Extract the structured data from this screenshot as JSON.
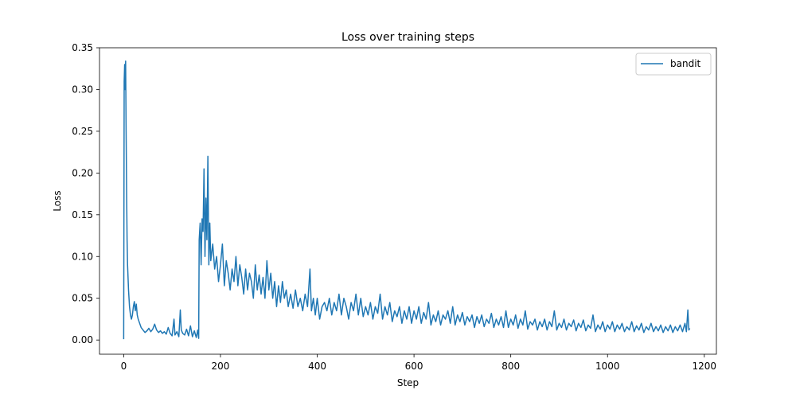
{
  "chart_data": {
    "type": "line",
    "title": "Loss over training steps",
    "xlabel": "Step",
    "ylabel": "Loss",
    "xlim": [
      -50,
      1225
    ],
    "ylim": [
      -0.017,
      0.35
    ],
    "xticks": [
      0,
      200,
      400,
      600,
      800,
      1000,
      1200
    ],
    "yticks": [
      0.0,
      0.05,
      0.1,
      0.15,
      0.2,
      0.25,
      0.3,
      0.35
    ],
    "xtick_labels": [
      "0",
      "200",
      "400",
      "600",
      "800",
      "1000",
      "1200"
    ],
    "ytick_labels": [
      "0.00",
      "0.05",
      "0.10",
      "0.15",
      "0.20",
      "0.25",
      "0.30",
      "0.35"
    ],
    "grid": false,
    "legend": {
      "position": "top-right",
      "entries": [
        "bandit"
      ]
    },
    "series": [
      {
        "name": "bandit",
        "color": "#1f77b4",
        "points": [
          [
            0,
            0.001
          ],
          [
            1,
            0.31
          ],
          [
            2,
            0.33
          ],
          [
            3,
            0.3
          ],
          [
            4,
            0.334
          ],
          [
            5,
            0.25
          ],
          [
            6,
            0.18
          ],
          [
            7,
            0.12
          ],
          [
            8,
            0.09
          ],
          [
            10,
            0.06
          ],
          [
            12,
            0.04
          ],
          [
            14,
            0.03
          ],
          [
            16,
            0.025
          ],
          [
            18,
            0.03
          ],
          [
            20,
            0.04
          ],
          [
            22,
            0.046
          ],
          [
            24,
            0.035
          ],
          [
            26,
            0.043
          ],
          [
            28,
            0.03
          ],
          [
            30,
            0.025
          ],
          [
            33,
            0.02
          ],
          [
            36,
            0.015
          ],
          [
            40,
            0.012
          ],
          [
            44,
            0.009
          ],
          [
            48,
            0.011
          ],
          [
            52,
            0.014
          ],
          [
            56,
            0.01
          ],
          [
            60,
            0.013
          ],
          [
            64,
            0.019
          ],
          [
            68,
            0.012
          ],
          [
            72,
            0.009
          ],
          [
            76,
            0.011
          ],
          [
            80,
            0.008
          ],
          [
            84,
            0.01
          ],
          [
            88,
            0.007
          ],
          [
            92,
            0.015
          ],
          [
            96,
            0.008
          ],
          [
            100,
            0.005
          ],
          [
            104,
            0.025
          ],
          [
            106,
            0.006
          ],
          [
            110,
            0.01
          ],
          [
            114,
            0.004
          ],
          [
            117,
            0.036
          ],
          [
            119,
            0.012
          ],
          [
            122,
            0.008
          ],
          [
            126,
            0.006
          ],
          [
            130,
            0.013
          ],
          [
            134,
            0.005
          ],
          [
            138,
            0.017
          ],
          [
            142,
            0.004
          ],
          [
            146,
            0.011
          ],
          [
            150,
            0.003
          ],
          [
            153,
            0.012
          ],
          [
            155,
            0.002
          ],
          [
            156,
            0.12
          ],
          [
            158,
            0.14
          ],
          [
            160,
            0.09
          ],
          [
            162,
            0.145
          ],
          [
            164,
            0.13
          ],
          [
            166,
            0.205
          ],
          [
            168,
            0.1
          ],
          [
            170,
            0.17
          ],
          [
            172,
            0.12
          ],
          [
            174,
            0.22
          ],
          [
            176,
            0.09
          ],
          [
            178,
            0.14
          ],
          [
            180,
            0.095
          ],
          [
            184,
            0.115
          ],
          [
            188,
            0.085
          ],
          [
            192,
            0.1
          ],
          [
            196,
            0.07
          ],
          [
            200,
            0.09
          ],
          [
            204,
            0.115
          ],
          [
            208,
            0.065
          ],
          [
            212,
            0.095
          ],
          [
            216,
            0.08
          ],
          [
            220,
            0.06
          ],
          [
            224,
            0.085
          ],
          [
            228,
            0.07
          ],
          [
            232,
            0.1
          ],
          [
            236,
            0.065
          ],
          [
            240,
            0.09
          ],
          [
            244,
            0.075
          ],
          [
            248,
            0.055
          ],
          [
            252,
            0.085
          ],
          [
            256,
            0.06
          ],
          [
            260,
            0.08
          ],
          [
            264,
            0.07
          ],
          [
            268,
            0.05
          ],
          [
            272,
            0.09
          ],
          [
            276,
            0.06
          ],
          [
            280,
            0.078
          ],
          [
            284,
            0.055
          ],
          [
            288,
            0.075
          ],
          [
            292,
            0.05
          ],
          [
            296,
            0.095
          ],
          [
            300,
            0.06
          ],
          [
            304,
            0.08
          ],
          [
            308,
            0.05
          ],
          [
            312,
            0.07
          ],
          [
            316,
            0.04
          ],
          [
            320,
            0.065
          ],
          [
            324,
            0.045
          ],
          [
            328,
            0.07
          ],
          [
            332,
            0.05
          ],
          [
            336,
            0.06
          ],
          [
            340,
            0.04
          ],
          [
            345,
            0.055
          ],
          [
            350,
            0.038
          ],
          [
            355,
            0.06
          ],
          [
            360,
            0.04
          ],
          [
            365,
            0.05
          ],
          [
            370,
            0.035
          ],
          [
            375,
            0.055
          ],
          [
            380,
            0.04
          ],
          [
            385,
            0.085
          ],
          [
            388,
            0.035
          ],
          [
            392,
            0.05
          ],
          [
            396,
            0.03
          ],
          [
            400,
            0.05
          ],
          [
            405,
            0.025
          ],
          [
            410,
            0.04
          ],
          [
            415,
            0.045
          ],
          [
            420,
            0.035
          ],
          [
            425,
            0.05
          ],
          [
            430,
            0.03
          ],
          [
            435,
            0.045
          ],
          [
            440,
            0.035
          ],
          [
            445,
            0.055
          ],
          [
            450,
            0.03
          ],
          [
            455,
            0.05
          ],
          [
            460,
            0.04
          ],
          [
            465,
            0.025
          ],
          [
            470,
            0.045
          ],
          [
            475,
            0.035
          ],
          [
            480,
            0.055
          ],
          [
            485,
            0.03
          ],
          [
            490,
            0.05
          ],
          [
            495,
            0.028
          ],
          [
            500,
            0.04
          ],
          [
            505,
            0.03
          ],
          [
            510,
            0.045
          ],
          [
            515,
            0.025
          ],
          [
            520,
            0.04
          ],
          [
            525,
            0.032
          ],
          [
            530,
            0.055
          ],
          [
            535,
            0.025
          ],
          [
            540,
            0.04
          ],
          [
            545,
            0.03
          ],
          [
            550,
            0.045
          ],
          [
            555,
            0.022
          ],
          [
            560,
            0.035
          ],
          [
            565,
            0.028
          ],
          [
            570,
            0.04
          ],
          [
            575,
            0.02
          ],
          [
            580,
            0.035
          ],
          [
            585,
            0.025
          ],
          [
            590,
            0.04
          ],
          [
            595,
            0.02
          ],
          [
            600,
            0.035
          ],
          [
            605,
            0.025
          ],
          [
            610,
            0.04
          ],
          [
            615,
            0.02
          ],
          [
            620,
            0.033
          ],
          [
            625,
            0.025
          ],
          [
            630,
            0.045
          ],
          [
            635,
            0.018
          ],
          [
            640,
            0.03
          ],
          [
            645,
            0.022
          ],
          [
            650,
            0.035
          ],
          [
            655,
            0.018
          ],
          [
            660,
            0.03
          ],
          [
            665,
            0.025
          ],
          [
            670,
            0.035
          ],
          [
            675,
            0.02
          ],
          [
            680,
            0.04
          ],
          [
            685,
            0.018
          ],
          [
            690,
            0.03
          ],
          [
            695,
            0.022
          ],
          [
            700,
            0.033
          ],
          [
            705,
            0.018
          ],
          [
            710,
            0.028
          ],
          [
            715,
            0.022
          ],
          [
            720,
            0.03
          ],
          [
            725,
            0.015
          ],
          [
            730,
            0.028
          ],
          [
            735,
            0.02
          ],
          [
            740,
            0.03
          ],
          [
            745,
            0.016
          ],
          [
            750,
            0.025
          ],
          [
            755,
            0.02
          ],
          [
            760,
            0.032
          ],
          [
            765,
            0.015
          ],
          [
            770,
            0.025
          ],
          [
            775,
            0.018
          ],
          [
            780,
            0.028
          ],
          [
            785,
            0.015
          ],
          [
            790,
            0.035
          ],
          [
            795,
            0.015
          ],
          [
            800,
            0.025
          ],
          [
            805,
            0.018
          ],
          [
            810,
            0.03
          ],
          [
            815,
            0.014
          ],
          [
            820,
            0.025
          ],
          [
            825,
            0.018
          ],
          [
            830,
            0.035
          ],
          [
            835,
            0.013
          ],
          [
            840,
            0.022
          ],
          [
            845,
            0.018
          ],
          [
            850,
            0.025
          ],
          [
            855,
            0.012
          ],
          [
            860,
            0.022
          ],
          [
            865,
            0.016
          ],
          [
            870,
            0.025
          ],
          [
            875,
            0.012
          ],
          [
            880,
            0.022
          ],
          [
            885,
            0.016
          ],
          [
            890,
            0.035
          ],
          [
            895,
            0.012
          ],
          [
            900,
            0.02
          ],
          [
            905,
            0.015
          ],
          [
            910,
            0.025
          ],
          [
            915,
            0.012
          ],
          [
            920,
            0.02
          ],
          [
            925,
            0.016
          ],
          [
            930,
            0.024
          ],
          [
            935,
            0.011
          ],
          [
            940,
            0.02
          ],
          [
            945,
            0.015
          ],
          [
            950,
            0.024
          ],
          [
            955,
            0.011
          ],
          [
            960,
            0.018
          ],
          [
            965,
            0.014
          ],
          [
            970,
            0.03
          ],
          [
            975,
            0.01
          ],
          [
            980,
            0.018
          ],
          [
            985,
            0.013
          ],
          [
            990,
            0.022
          ],
          [
            995,
            0.01
          ],
          [
            1000,
            0.018
          ],
          [
            1005,
            0.013
          ],
          [
            1010,
            0.022
          ],
          [
            1015,
            0.01
          ],
          [
            1020,
            0.018
          ],
          [
            1025,
            0.013
          ],
          [
            1030,
            0.02
          ],
          [
            1035,
            0.01
          ],
          [
            1040,
            0.016
          ],
          [
            1045,
            0.012
          ],
          [
            1050,
            0.022
          ],
          [
            1055,
            0.01
          ],
          [
            1060,
            0.017
          ],
          [
            1065,
            0.012
          ],
          [
            1070,
            0.02
          ],
          [
            1075,
            0.009
          ],
          [
            1080,
            0.016
          ],
          [
            1085,
            0.012
          ],
          [
            1090,
            0.02
          ],
          [
            1095,
            0.01
          ],
          [
            1100,
            0.016
          ],
          [
            1105,
            0.011
          ],
          [
            1110,
            0.018
          ],
          [
            1115,
            0.009
          ],
          [
            1120,
            0.016
          ],
          [
            1125,
            0.011
          ],
          [
            1130,
            0.018
          ],
          [
            1135,
            0.009
          ],
          [
            1140,
            0.016
          ],
          [
            1145,
            0.011
          ],
          [
            1150,
            0.018
          ],
          [
            1155,
            0.01
          ],
          [
            1160,
            0.02
          ],
          [
            1163,
            0.01
          ],
          [
            1166,
            0.036
          ],
          [
            1168,
            0.012
          ],
          [
            1170,
            0.014
          ]
        ]
      }
    ]
  }
}
